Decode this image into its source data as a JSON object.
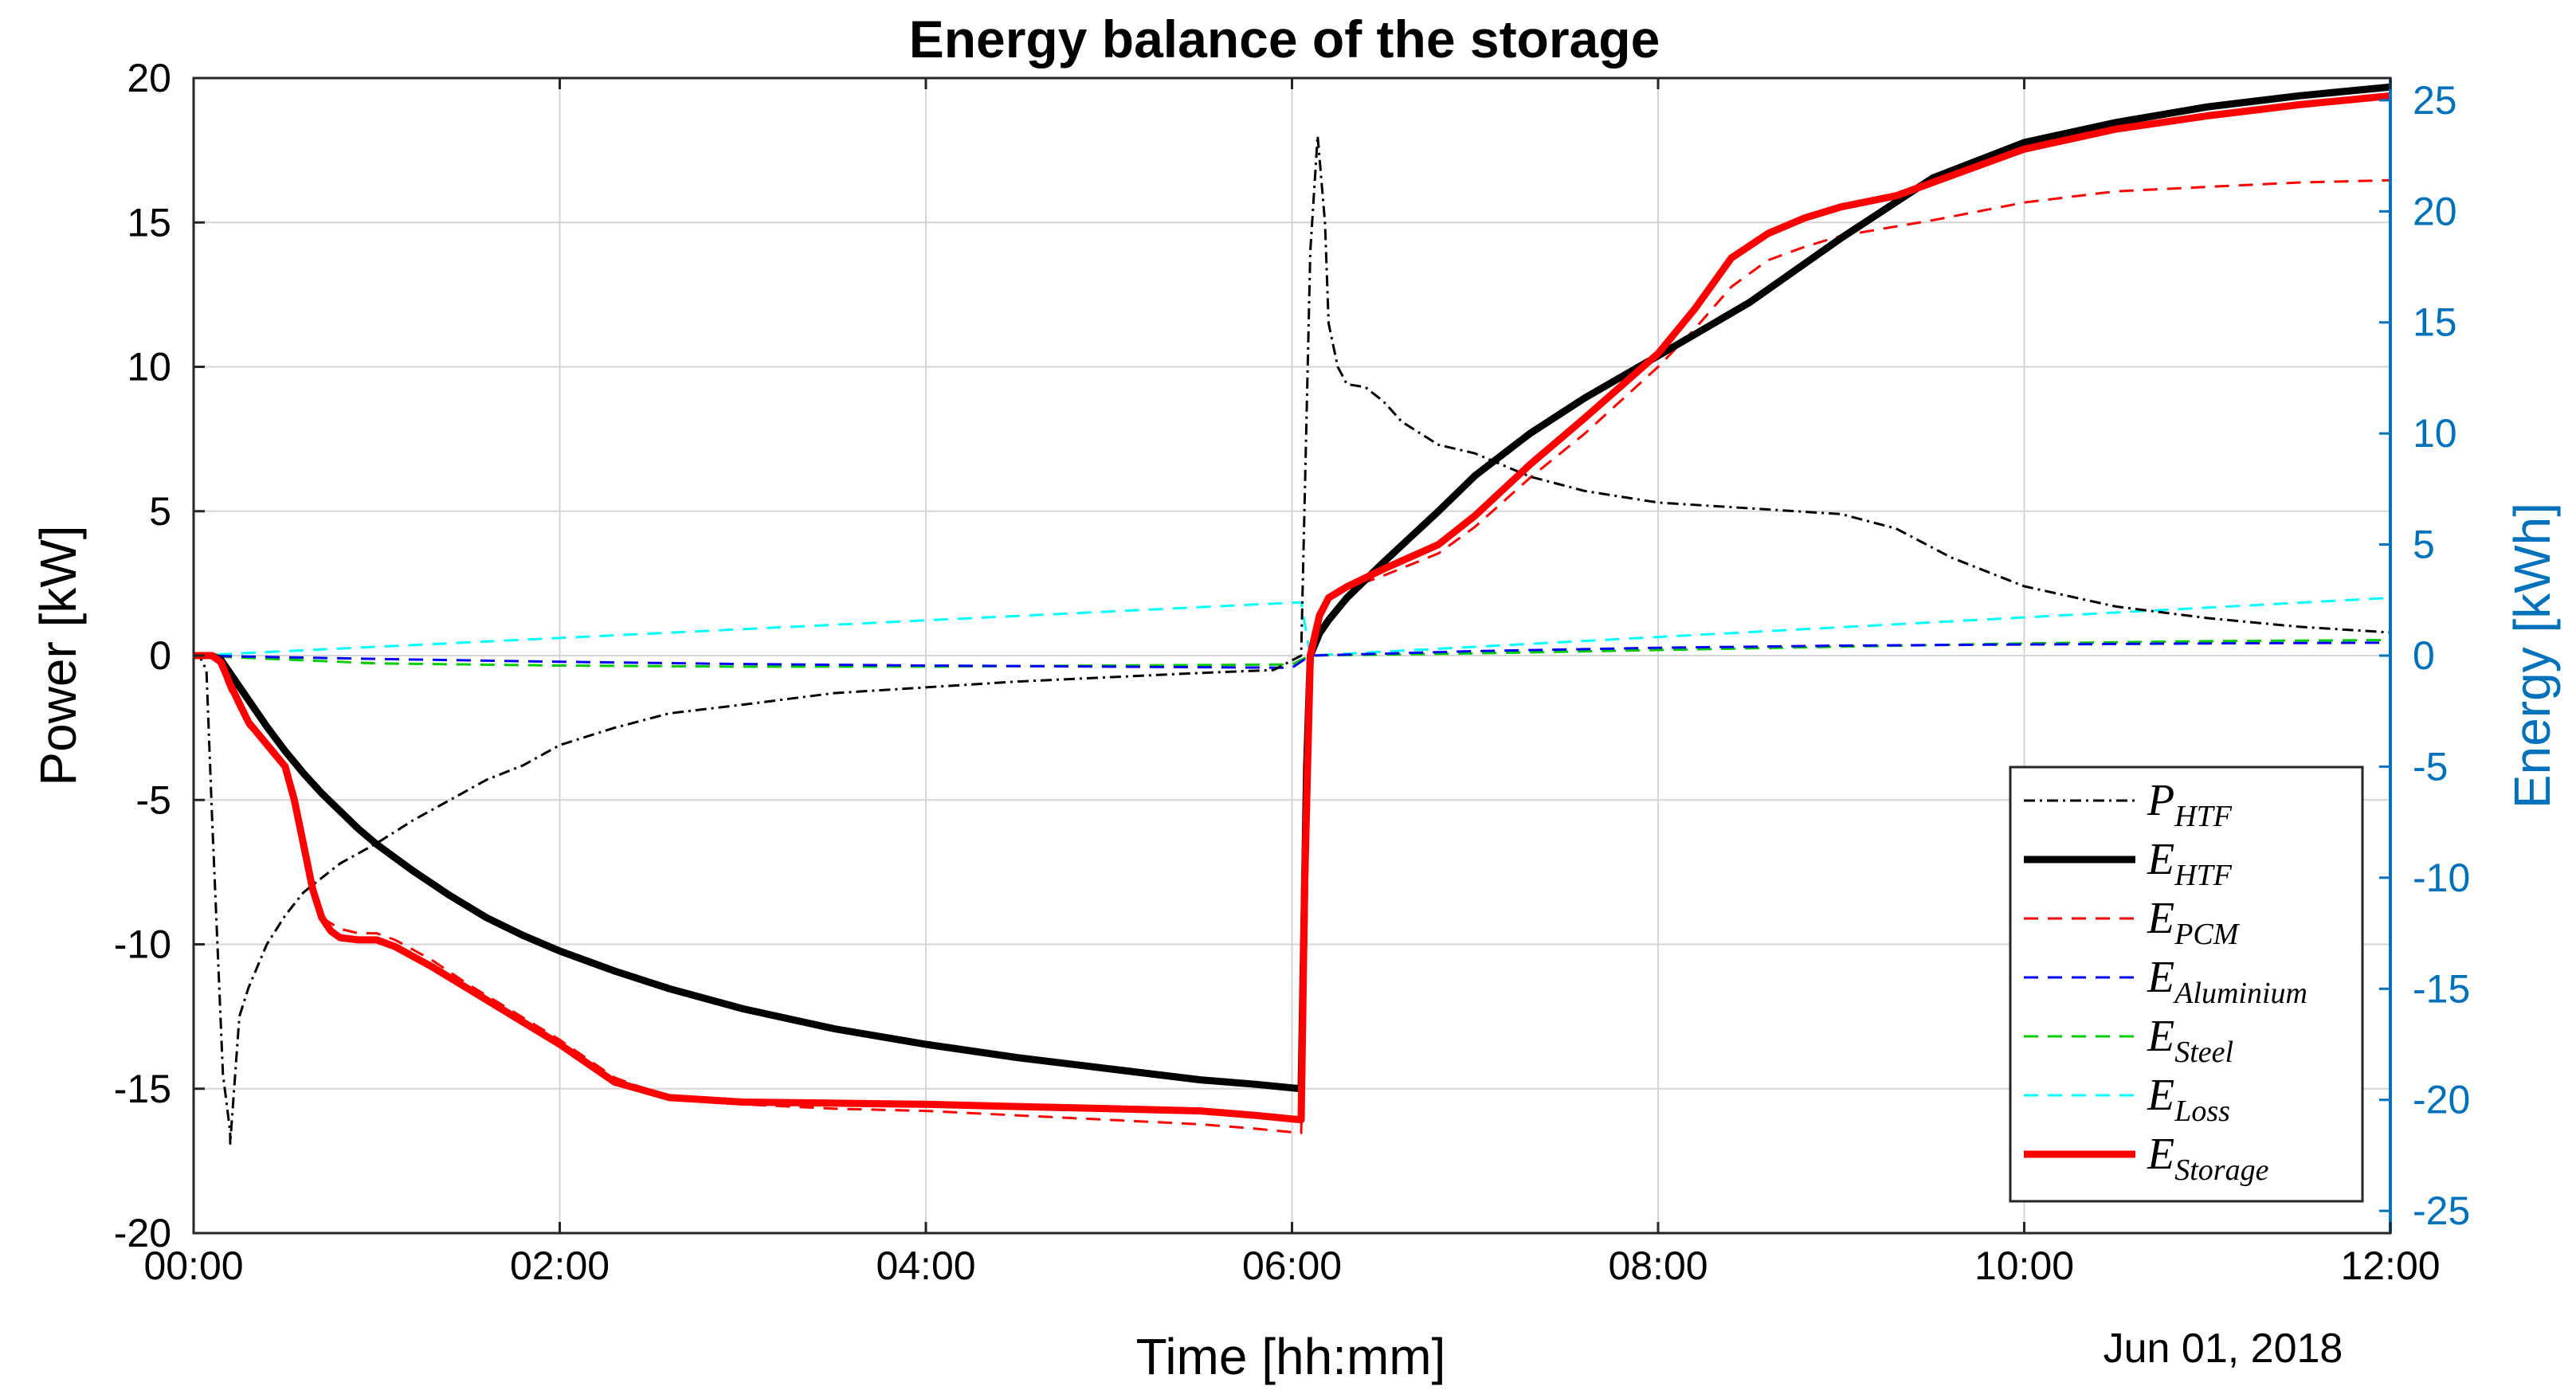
{
  "chart_data": {
    "type": "line",
    "title": "Energy balance of the storage",
    "xlabel": "Time [hh:mm]",
    "ylabel": "Power [kW]",
    "ylabel_right": "Energy [kWh]",
    "date_label": "Jun 01, 2018",
    "xlim_hours": [
      0,
      12
    ],
    "ylim": [
      -20,
      20
    ],
    "ylim_right": [
      -26,
      26
    ],
    "grid": true,
    "legend_position": "bottom-right",
    "x_ticks": [
      "00:00",
      "02:00",
      "04:00",
      "06:00",
      "08:00",
      "10:00",
      "12:00"
    ],
    "y_ticks_left": [
      "20",
      "15",
      "10",
      "5",
      "0",
      "-5",
      "-10",
      "-15",
      "-20"
    ],
    "y_ticks_right": [
      "25",
      "20",
      "15",
      "10",
      "5",
      "0",
      "-5",
      "-10",
      "-15",
      "-20",
      "-25"
    ],
    "series": [
      {
        "name": "P_HTF",
        "main": "P",
        "sub": "HTF",
        "axis": "left",
        "color": "#000000",
        "width": 3,
        "dash": "14 6 3 6",
        "x": [
          0,
          0.03,
          0.07,
          0.1,
          0.13,
          0.16,
          0.2,
          0.2,
          0.25,
          0.3,
          0.4,
          0.5,
          0.6,
          0.7,
          0.8,
          1.0,
          1.2,
          1.4,
          1.6,
          1.8,
          2.0,
          2.3,
          2.6,
          3.0,
          3.5,
          4.0,
          4.5,
          5.0,
          5.5,
          5.9,
          6.05,
          6.1,
          6.14,
          6.18,
          6.2,
          6.25,
          6.3,
          6.4,
          6.5,
          6.6,
          6.8,
          7.0,
          7.3,
          7.6,
          8.0,
          8.5,
          9.0,
          9.3,
          9.6,
          10.0,
          10.5,
          11.0,
          11.5,
          12.0
        ],
        "y": [
          0,
          0,
          -0.5,
          -5.5,
          -10,
          -14.5,
          -16.5,
          -16.9,
          -12.5,
          -11.5,
          -10,
          -9,
          -8.2,
          -7.7,
          -7.2,
          -6.5,
          -5.7,
          -5,
          -4.3,
          -3.8,
          -3.1,
          -2.5,
          -2,
          -1.7,
          -1.3,
          -1.1,
          -0.9,
          -0.75,
          -0.6,
          -0.5,
          0,
          14,
          18,
          15,
          11.5,
          10,
          9.4,
          9.3,
          8.8,
          8.1,
          7.3,
          7,
          6.2,
          5.7,
          5.3,
          5.1,
          4.9,
          4.4,
          3.4,
          2.4,
          1.7,
          1.3,
          1,
          0.8
        ]
      },
      {
        "name": "E_HTF",
        "main": "E",
        "sub": "HTF",
        "axis": "right",
        "color": "#000000",
        "width": 9,
        "dash": "",
        "x": [
          0,
          0.1,
          0.15,
          0.2,
          0.3,
          0.4,
          0.5,
          0.6,
          0.7,
          0.8,
          0.9,
          1.0,
          1.2,
          1.4,
          1.6,
          1.8,
          2.0,
          2.3,
          2.6,
          3.0,
          3.5,
          4.0,
          4.5,
          5.0,
          5.5,
          5.8,
          6.05,
          6.08,
          6.1,
          6.15,
          6.2,
          6.3,
          6.5,
          6.8,
          7.0,
          7.3,
          7.6,
          8.0,
          8.5,
          9.0,
          9.5,
          10.0,
          10.5,
          11.0,
          11.5,
          12.0
        ],
        "y": [
          0,
          0,
          -0.2,
          -0.8,
          -2.0,
          -3.2,
          -4.3,
          -5.3,
          -6.2,
          -7.0,
          -7.8,
          -8.5,
          -9.7,
          -10.8,
          -11.8,
          -12.6,
          -13.3,
          -14.2,
          -15.0,
          -15.9,
          -16.8,
          -17.5,
          -18.1,
          -18.6,
          -19.1,
          -19.3,
          -19.5,
          -5,
          0,
          1.0,
          1.6,
          2.6,
          4.2,
          6.5,
          8.1,
          10.0,
          11.6,
          13.5,
          15.9,
          18.8,
          21.5,
          23.1,
          24.0,
          24.7,
          25.2,
          25.6
        ]
      },
      {
        "name": "E_PCM",
        "main": "E",
        "sub": "PCM",
        "axis": "right",
        "color": "#ff0000",
        "width": 3,
        "dash": "18 12",
        "x": [
          0,
          0.12,
          0.2,
          0.3,
          0.4,
          0.5,
          0.55,
          0.6,
          0.65,
          0.7,
          0.8,
          0.9,
          1.0,
          1.1,
          1.3,
          1.5,
          1.8,
          2.0,
          2.3,
          2.6,
          3.0,
          3.5,
          4.0,
          4.5,
          5.0,
          5.5,
          5.8,
          6.05,
          6.08,
          6.1,
          6.15,
          6.2,
          6.3,
          6.5,
          6.8,
          7.0,
          7.3,
          7.6,
          8.0,
          8.2,
          8.4,
          8.6,
          8.8,
          9.0,
          9.5,
          10.0,
          10.5,
          11.0,
          11.5,
          12.0
        ],
        "y": [
          0,
          0,
          -1.6,
          -3.2,
          -4.0,
          -5.0,
          -6.5,
          -8.5,
          -10.5,
          -11.8,
          -12.3,
          -12.5,
          -12.5,
          -12.8,
          -13.7,
          -14.8,
          -16.3,
          -17.3,
          -19.0,
          -19.9,
          -20.2,
          -20.4,
          -20.5,
          -20.7,
          -20.9,
          -21.1,
          -21.3,
          -21.5,
          -10,
          0,
          1.8,
          2.5,
          3.0,
          3.6,
          4.6,
          5.8,
          8.0,
          10.0,
          13.0,
          14.7,
          16.6,
          17.8,
          18.4,
          18.9,
          19.6,
          20.4,
          20.9,
          21.1,
          21.3,
          21.4
        ]
      },
      {
        "name": "E_Aluminium",
        "main": "E",
        "sub": "Aluminium",
        "axis": "right",
        "color": "#0000ff",
        "width": 3,
        "dash": "18 12",
        "x": [
          0,
          1,
          2,
          3,
          4,
          5,
          6,
          6.1,
          7,
          8,
          9,
          10,
          11,
          12
        ],
        "y": [
          0,
          -0.15,
          -0.28,
          -0.38,
          -0.45,
          -0.5,
          -0.55,
          0,
          0.2,
          0.35,
          0.45,
          0.5,
          0.55,
          0.58
        ]
      },
      {
        "name": "E_Steel",
        "main": "E",
        "sub": "Steel",
        "axis": "right",
        "color": "#00cc00",
        "width": 3,
        "dash": "18 12",
        "x": [
          0,
          1,
          2,
          3,
          4,
          5,
          6,
          6.1,
          7,
          8,
          9,
          10,
          11,
          12
        ],
        "y": [
          0,
          -0.35,
          -0.45,
          -0.5,
          -0.5,
          -0.45,
          -0.4,
          0,
          0.1,
          0.25,
          0.4,
          0.55,
          0.65,
          0.7
        ]
      },
      {
        "name": "E_Loss",
        "main": "E",
        "sub": "Loss",
        "axis": "right",
        "color": "#00ffff",
        "width": 3,
        "dash": "18 12",
        "x": [
          0,
          6.05,
          6.1,
          12
        ],
        "y": [
          0,
          2.4,
          0,
          2.6
        ]
      },
      {
        "name": "E_Storage",
        "main": "E",
        "sub": "Storage",
        "axis": "right",
        "color": "#ff0000",
        "width": 9,
        "dash": "",
        "x": [
          0,
          0.1,
          0.15,
          0.2,
          0.3,
          0.4,
          0.5,
          0.55,
          0.6,
          0.65,
          0.7,
          0.75,
          0.8,
          0.9,
          1.0,
          1.1,
          1.3,
          1.5,
          1.8,
          2.0,
          2.3,
          2.6,
          3.0,
          3.5,
          4.0,
          4.5,
          5.0,
          5.5,
          5.8,
          6.05,
          6.07,
          6.1,
          6.15,
          6.2,
          6.3,
          6.5,
          6.8,
          7.0,
          7.3,
          7.6,
          8.0,
          8.2,
          8.4,
          8.6,
          8.8,
          9.0,
          9.3,
          9.6,
          10.0,
          10.5,
          11.0,
          11.5,
          12.0
        ],
        "y": [
          0,
          0,
          -0.3,
          -1.3,
          -3.0,
          -4.0,
          -5.0,
          -6.5,
          -8.5,
          -10.5,
          -11.8,
          -12.4,
          -12.7,
          -12.8,
          -12.8,
          -13.1,
          -14.0,
          -15.0,
          -16.5,
          -17.5,
          -19.2,
          -19.9,
          -20.1,
          -20.15,
          -20.2,
          -20.3,
          -20.4,
          -20.5,
          -20.7,
          -20.9,
          -10,
          0,
          1.8,
          2.6,
          3.1,
          3.9,
          5.0,
          6.3,
          8.6,
          10.7,
          13.6,
          15.6,
          17.9,
          19.0,
          19.7,
          20.2,
          20.7,
          21.6,
          22.8,
          23.7,
          24.3,
          24.8,
          25.2
        ]
      }
    ]
  }
}
